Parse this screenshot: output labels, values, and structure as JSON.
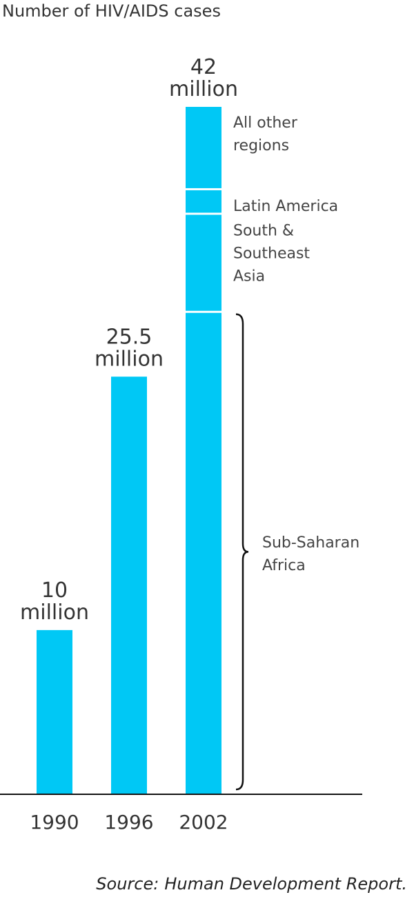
{
  "chart_data": {
    "type": "bar",
    "title": "Number of HIV/AIDS cases",
    "categories": [
      "1990",
      "1996",
      "2002"
    ],
    "values": [
      10,
      25.5,
      42
    ],
    "value_labels": [
      [
        "10",
        "million"
      ],
      [
        "25.5",
        "million"
      ],
      [
        "42",
        "million"
      ]
    ],
    "ylim": [
      0,
      42
    ],
    "grid": false,
    "bar_color": "#00c8f5",
    "breakdown": {
      "category": "2002",
      "segments": [
        {
          "label": [
            "Sub-Saharan",
            "Africa"
          ],
          "value": 29.4
        },
        {
          "label": [
            "South &",
            "Southeast",
            "Asia"
          ],
          "value": 6.0
        },
        {
          "label": [
            "Latin America"
          ],
          "value": 1.5
        },
        {
          "label": [
            "All other",
            "regions"
          ],
          "value": 5.1
        }
      ]
    },
    "source_prefix": "Source:",
    "source_name": "Human Development Report."
  }
}
